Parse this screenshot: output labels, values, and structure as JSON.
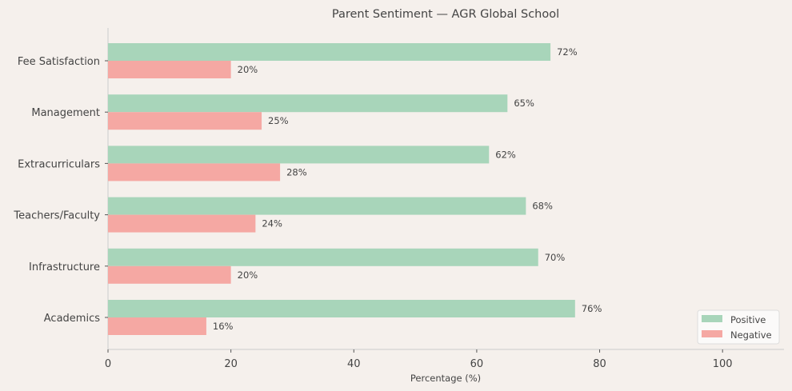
{
  "chart_data": {
    "type": "bar",
    "orientation": "horizontal",
    "title": "Parent Sentiment — AGR Global School",
    "xlabel": "Percentage (%)",
    "ylabel": "",
    "xlim": [
      0,
      110
    ],
    "xticks": [
      0,
      20,
      40,
      60,
      80,
      100
    ],
    "grid": false,
    "legend_position": "bottom-right",
    "categories": [
      "Fee Satisfaction",
      "Management",
      "Extracurriculars",
      "Teachers/Faculty",
      "Infrastructure",
      "Academics"
    ],
    "series": [
      {
        "name": "Positive",
        "color": "#a8d5ba",
        "values": [
          72,
          65,
          62,
          68,
          70,
          76
        ]
      },
      {
        "name": "Negative",
        "color": "#f5a8a3",
        "values": [
          20,
          25,
          28,
          24,
          20,
          16
        ]
      }
    ],
    "data_label_suffix": "%"
  }
}
